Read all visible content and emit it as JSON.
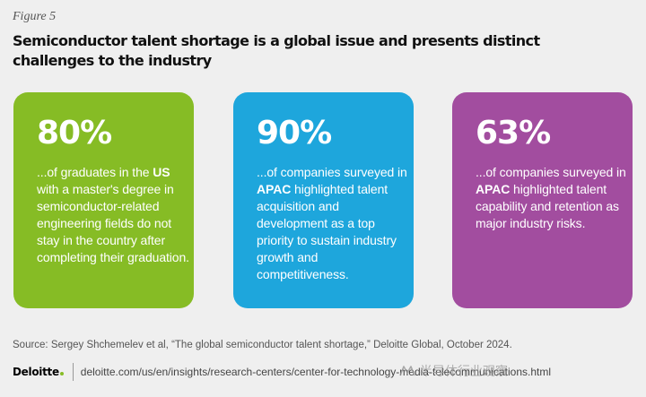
{
  "figure_label": "Figure 5",
  "title": "Semiconductor talent shortage is a global issue and presents distinct challenges to the industry",
  "cards": [
    {
      "color": "#86bc25",
      "stat": "80%",
      "desc_before": "...of graduates in the ",
      "highlight": "US",
      "desc_after": " with a master's degree in semiconductor-related engineering fields do not stay in the country after completing their graduation."
    },
    {
      "color": "#1ea6dc",
      "stat": "90%",
      "desc_before": "...of companies surveyed in ",
      "highlight": "APAC",
      "desc_after": " highlighted talent acquisition and development as a top priority to sustain industry growth and competitiveness."
    },
    {
      "color": "#a24d9f",
      "stat": "63%",
      "desc_before": "...of companies surveyed in ",
      "highlight": "APAC",
      "desc_after": " highlighted talent capability and retention as major industry risks."
    }
  ],
  "source": "Source: Sergey Shchemelev et al, “The global semiconductor talent shortage,” Deloitte Global, October 2024.",
  "footer": {
    "brand": "Deloitte",
    "url": "deloitte.com/us/en/insights/research-centers/center-for-technology-media-telecommunications.html"
  },
  "watermark": {
    "icon": "wechat-channel-icon",
    "text": "半导体行业观察"
  }
}
